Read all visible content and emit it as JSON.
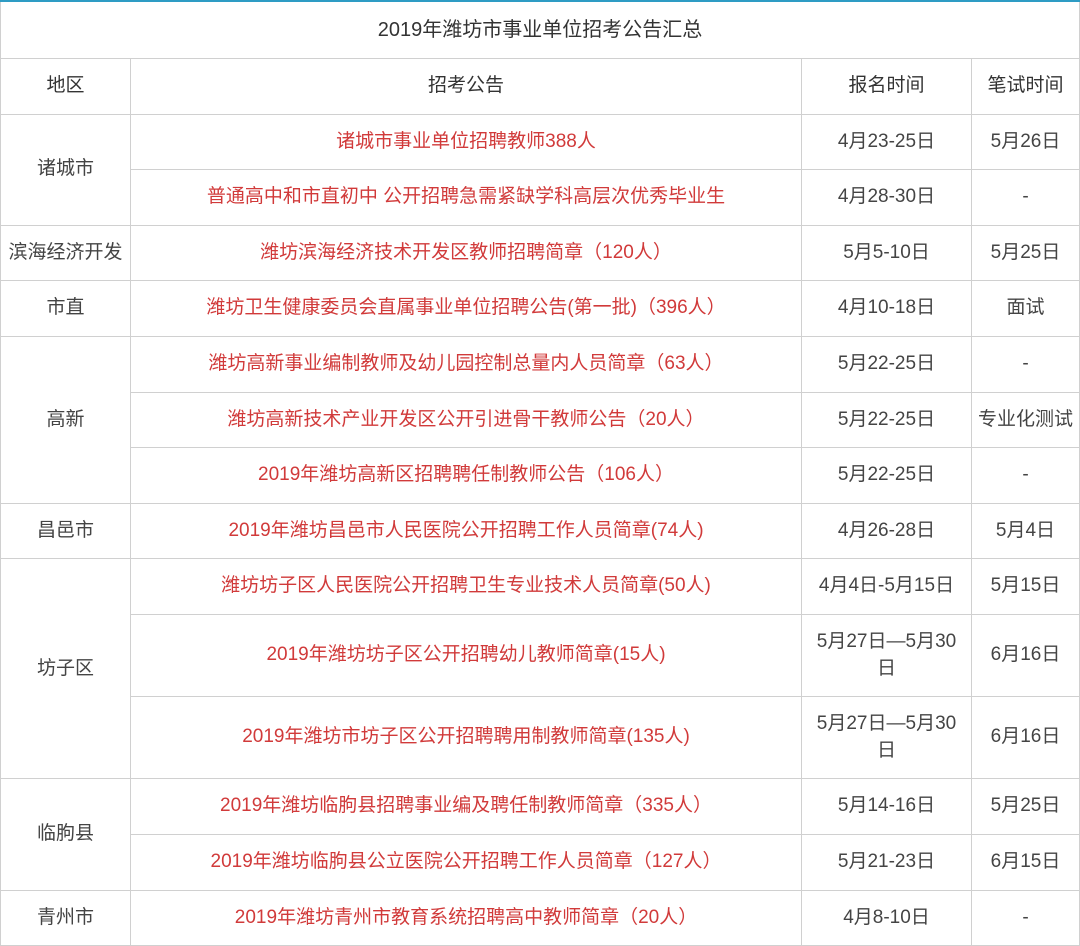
{
  "title": "2019年潍坊市事业单位招考公告汇总",
  "headers": {
    "region": "地区",
    "announcement": "招考公告",
    "apply_time": "报名时间",
    "exam_time": "笔试时间"
  },
  "groups": [
    {
      "region": "诸城市",
      "rows": [
        {
          "announcement": "诸城市事业单位招聘教师388人",
          "apply": "4月23-25日",
          "exam": "5月26日"
        },
        {
          "announcement": "普通高中和市直初中 公开招聘急需紧缺学科高层次优秀毕业生",
          "apply": "4月28-30日",
          "exam": "-"
        }
      ]
    },
    {
      "region": "滨海经济开发",
      "rows": [
        {
          "announcement": "潍坊滨海经济技术开发区教师招聘简章（120人）",
          "apply": "5月5-10日",
          "exam": "5月25日"
        }
      ]
    },
    {
      "region": "市直",
      "rows": [
        {
          "announcement": "潍坊卫生健康委员会直属事业单位招聘公告(第一批)（396人）",
          "apply": "4月10-18日",
          "exam": "面试"
        }
      ]
    },
    {
      "region": "高新",
      "rows": [
        {
          "announcement": "潍坊高新事业编制教师及幼儿园控制总量内人员简章（63人）",
          "apply": "5月22-25日",
          "exam": "-"
        },
        {
          "announcement": "潍坊高新技术产业开发区公开引进骨干教师公告（20人）",
          "apply": "5月22-25日",
          "exam": "专业化测试"
        },
        {
          "announcement": "2019年潍坊高新区招聘聘任制教师公告（106人）",
          "apply": "5月22-25日",
          "exam": "-"
        }
      ]
    },
    {
      "region": "昌邑市",
      "rows": [
        {
          "announcement": "2019年潍坊昌邑市人民医院公开招聘工作人员简章(74人)",
          "apply": "4月26-28日",
          "exam": "5月4日"
        }
      ]
    },
    {
      "region": "坊子区",
      "rows": [
        {
          "announcement": "潍坊坊子区人民医院公开招聘卫生专业技术人员简章(50人)",
          "apply": "4月4日-5月15日",
          "exam": "5月15日"
        },
        {
          "announcement": "2019年潍坊坊子区公开招聘幼儿教师简章(15人)",
          "apply": "5月27日—5月30日",
          "exam": "6月16日"
        },
        {
          "announcement": "2019年潍坊市坊子区公开招聘聘用制教师简章(135人)",
          "apply": "5月27日—5月30日",
          "exam": "6月16日"
        }
      ]
    },
    {
      "region": "临朐县",
      "rows": [
        {
          "announcement": "2019年潍坊临朐县招聘事业编及聘任制教师简章（335人）",
          "apply": "5月14-16日",
          "exam": "5月25日"
        },
        {
          "announcement": "2019年潍坊临朐县公立医院公开招聘工作人员简章（127人）",
          "apply": "5月21-23日",
          "exam": "6月15日"
        }
      ]
    },
    {
      "region": "青州市",
      "rows": [
        {
          "announcement": "2019年潍坊青州市教育系统招聘高中教师简章（20人）",
          "apply": "4月8-10日",
          "exam": "-"
        }
      ]
    }
  ],
  "colors": {
    "border_top": "#2e9cc4",
    "cell_border": "#d0d0d0",
    "text_normal": "#444444",
    "text_link": "#d13a3a",
    "background": "#ffffff"
  }
}
